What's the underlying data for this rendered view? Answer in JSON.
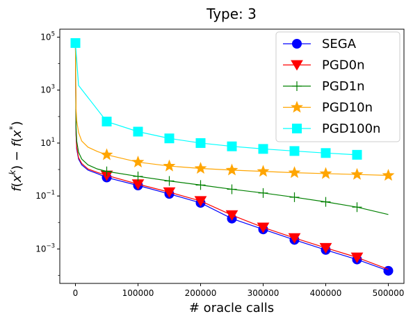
{
  "chart_data": {
    "type": "line",
    "title": "Type: 3",
    "xlabel": "# oracle calls",
    "ylabel": "f(x^k) − f(x^*)",
    "yscale": "log",
    "xlim": [
      -25000,
      525000
    ],
    "ylim": [
      5e-05,
      200000
    ],
    "xticks": [
      0,
      100000,
      200000,
      300000,
      400000,
      500000
    ],
    "xtick_labels": [
      "0",
      "100000",
      "200000",
      "300000",
      "400000",
      "500000"
    ],
    "yticks": [
      0.001,
      0.1,
      10,
      1000,
      100000
    ],
    "ytick_labels": [
      {
        "base": "10",
        "exp": "−3"
      },
      {
        "base": "10",
        "exp": "−1"
      },
      {
        "base": "10",
        "exp": "1"
      },
      {
        "base": "10",
        "exp": "3"
      },
      {
        "base": "10",
        "exp": "5"
      }
    ],
    "grid": false,
    "legend_position": "top-right",
    "series": [
      {
        "name": "SEGA",
        "color": "#0000ff",
        "marker": "circle",
        "line_x": [
          0,
          1000,
          2000,
          5000,
          10000,
          20000,
          35000,
          50000,
          100000,
          150000,
          200000,
          250000,
          300000,
          350000,
          400000,
          450000,
          500000
        ],
        "line_y": [
          60000,
          20,
          6,
          2.5,
          1.5,
          0.95,
          0.7,
          0.5,
          0.25,
          0.12,
          0.055,
          0.014,
          0.0055,
          0.0022,
          0.00092,
          0.0004,
          0.00015
        ],
        "marker_x": [
          50000,
          100000,
          150000,
          200000,
          250000,
          300000,
          350000,
          400000,
          450000,
          500000
        ],
        "marker_y": [
          0.5,
          0.25,
          0.12,
          0.055,
          0.014,
          0.0055,
          0.0022,
          0.00092,
          0.0004,
          0.00015
        ]
      },
      {
        "name": "PGD0n",
        "color": "#ff0000",
        "marker": "triangle-down",
        "line_x": [
          0,
          1000,
          2000,
          5000,
          10000,
          20000,
          35000,
          50000,
          100000,
          150000,
          200000,
          250000,
          300000,
          350000,
          400000,
          450000,
          500000
        ],
        "line_y": [
          60000,
          22,
          7,
          2.8,
          1.7,
          1.05,
          0.78,
          0.6,
          0.28,
          0.14,
          0.065,
          0.019,
          0.0065,
          0.0026,
          0.0011,
          0.00048,
          0.00017
        ],
        "marker_x": [
          50000,
          100000,
          150000,
          200000,
          250000,
          300000,
          350000,
          400000,
          450000
        ],
        "marker_y": [
          0.6,
          0.28,
          0.14,
          0.065,
          0.019,
          0.0065,
          0.0026,
          0.0011,
          0.00048
        ]
      },
      {
        "name": "PGD1n",
        "color": "#008000",
        "marker": "plus",
        "line_x": [
          0,
          1000,
          2000,
          5000,
          10000,
          20000,
          35000,
          50000,
          100000,
          150000,
          200000,
          250000,
          300000,
          350000,
          400000,
          450000,
          500000
        ],
        "line_y": [
          60000,
          40,
          12,
          4.5,
          2.5,
          1.5,
          1.05,
          0.85,
          0.55,
          0.37,
          0.26,
          0.18,
          0.13,
          0.09,
          0.06,
          0.038,
          0.02
        ],
        "marker_x": [
          50000,
          100000,
          150000,
          200000,
          250000,
          300000,
          350000,
          400000,
          450000
        ],
        "marker_y": [
          0.85,
          0.55,
          0.37,
          0.26,
          0.18,
          0.13,
          0.09,
          0.06,
          0.038
        ]
      },
      {
        "name": "PGD10n",
        "color": "#ffa500",
        "marker": "star",
        "line_x": [
          0,
          1000,
          2000,
          5000,
          10000,
          20000,
          35000,
          50000,
          100000,
          150000,
          200000,
          250000,
          300000,
          350000,
          400000,
          450000,
          500000
        ],
        "line_y": [
          60000,
          200,
          70,
          25,
          12,
          7,
          4.8,
          3.6,
          1.9,
          1.35,
          1.1,
          0.95,
          0.85,
          0.76,
          0.7,
          0.65,
          0.6
        ],
        "marker_x": [
          50000,
          100000,
          150000,
          200000,
          250000,
          300000,
          350000,
          400000,
          450000,
          500000
        ],
        "marker_y": [
          3.6,
          1.9,
          1.35,
          1.1,
          0.95,
          0.85,
          0.76,
          0.7,
          0.65,
          0.6
        ]
      },
      {
        "name": "PGD100n",
        "color": "#00ffff",
        "marker": "square",
        "line_x": [
          0,
          5000,
          50000,
          100000,
          150000,
          200000,
          250000,
          300000,
          350000,
          400000,
          450000
        ],
        "line_y": [
          60000,
          1500,
          65,
          27,
          15,
          10,
          7.5,
          6,
          5,
          4.2,
          3.6
        ],
        "marker_x": [
          0,
          50000,
          100000,
          150000,
          200000,
          250000,
          300000,
          350000,
          400000,
          450000
        ],
        "marker_y": [
          60000,
          65,
          27,
          15,
          10,
          7.5,
          6,
          5,
          4.2,
          3.6
        ]
      }
    ]
  }
}
